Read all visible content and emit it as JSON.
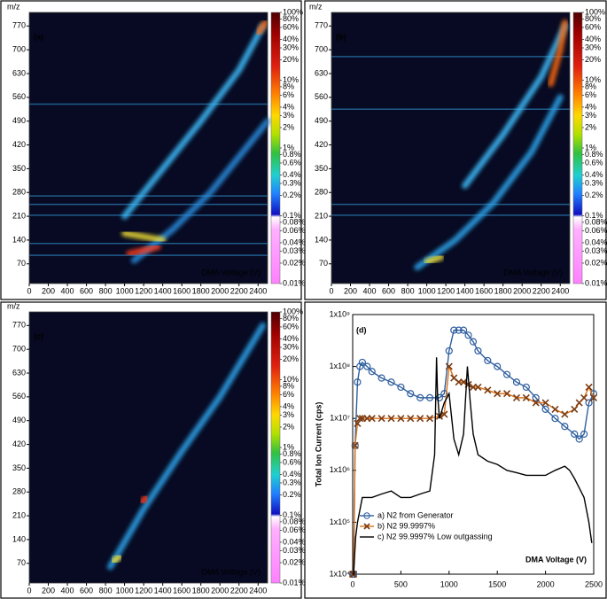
{
  "chart_data": [
    {
      "type": "heatmap",
      "panel_label": "(a)",
      "y_label": "m/z",
      "x_label": "DMA Voltage (V)",
      "xlim": [
        0,
        2500
      ],
      "xticks": [
        0,
        200,
        400,
        600,
        800,
        1000,
        1200,
        1400,
        1600,
        1800,
        2000,
        2200,
        2400
      ],
      "ylim": [
        12,
        810
      ],
      "yticks": [
        70,
        140,
        210,
        280,
        350,
        420,
        490,
        560,
        630,
        700,
        770
      ],
      "colorbar": {
        "scale": "log",
        "lim": [
          0.01,
          100
        ],
        "ticks": [
          {
            "value": 100,
            "label": "100%"
          },
          {
            "value": 80,
            "label": "80%"
          },
          {
            "value": 60,
            "label": "60%"
          },
          {
            "value": 40,
            "label": "40%"
          },
          {
            "value": 30,
            "label": "30%"
          },
          {
            "value": 20,
            "label": "20%"
          },
          {
            "value": 10,
            "label": "10%"
          },
          {
            "value": 8,
            "label": "8%"
          },
          {
            "value": 6,
            "label": "6%"
          },
          {
            "value": 4,
            "label": "4%"
          },
          {
            "value": 3,
            "label": "3%"
          },
          {
            "value": 2,
            "label": "2%"
          },
          {
            "value": 1,
            "label": "1%"
          },
          {
            "value": 0.8,
            "label": "0.8%"
          },
          {
            "value": 0.6,
            "label": "0.6%"
          },
          {
            "value": 0.4,
            "label": "0.4%"
          },
          {
            "value": 0.3,
            "label": "0.3%"
          },
          {
            "value": 0.2,
            "label": "0.2%"
          },
          {
            "value": 0.1,
            "label": "0.1%"
          },
          {
            "value": 0.08,
            "label": "0.08%"
          },
          {
            "value": 0.06,
            "label": "0.06%"
          },
          {
            "value": 0.04,
            "label": "0.04%"
          },
          {
            "value": 0.03,
            "label": "0.03%"
          },
          {
            "value": 0.02,
            "label": "0.02%"
          },
          {
            "value": 0.01,
            "label": "0.01%"
          }
        ]
      },
      "bands": [
        95,
        130,
        213,
        245,
        270,
        540
      ],
      "ridges": [
        {
          "color": "#3fc0ff",
          "x": [
            1000,
            1400,
            1800,
            2200,
            2450
          ],
          "y": [
            210,
            350,
            490,
            640,
            770
          ]
        },
        {
          "color": "#2a8fe0",
          "x": [
            1100,
            1500,
            1900,
            2300,
            2500
          ],
          "y": [
            80,
            170,
            280,
            420,
            490
          ]
        },
        {
          "color": "#f2e034",
          "x": [
            1000,
            1200,
            1400
          ],
          "y": [
            160,
            150,
            140
          ]
        },
        {
          "color": "#ff3b1f",
          "x": [
            1050,
            1200,
            1350
          ],
          "y": [
            100,
            110,
            120
          ]
        },
        {
          "color": "#ff6a10",
          "x": [
            2400,
            2480
          ],
          "y": [
            750,
            780
          ]
        }
      ]
    },
    {
      "type": "heatmap",
      "panel_label": "(b)",
      "y_label": "m/z",
      "x_label": "DMA Voltage (V)",
      "xlim": [
        0,
        2500
      ],
      "xticks": [
        0,
        200,
        400,
        600,
        800,
        1000,
        1200,
        1400,
        1600,
        1800,
        2000,
        2200,
        2400
      ],
      "ylim": [
        12,
        810
      ],
      "yticks": [
        70,
        140,
        210,
        280,
        350,
        420,
        490,
        560,
        630,
        700,
        770
      ],
      "colorbar": {
        "scale": "log",
        "lim": [
          0.01,
          100
        ],
        "ticks": [
          {
            "value": 100,
            "label": "100%"
          },
          {
            "value": 80,
            "label": "80%"
          },
          {
            "value": 60,
            "label": "60%"
          },
          {
            "value": 40,
            "label": "40%"
          },
          {
            "value": 30,
            "label": "30%"
          },
          {
            "value": 20,
            "label": "20%"
          },
          {
            "value": 10,
            "label": "10%"
          },
          {
            "value": 8,
            "label": "8%"
          },
          {
            "value": 6,
            "label": "6%"
          },
          {
            "value": 4,
            "label": "4%"
          },
          {
            "value": 3,
            "label": "3%"
          },
          {
            "value": 2,
            "label": "2%"
          },
          {
            "value": 1,
            "label": "1%"
          },
          {
            "value": 0.8,
            "label": "0.8%"
          },
          {
            "value": 0.6,
            "label": "0.6%"
          },
          {
            "value": 0.4,
            "label": "0.4%"
          },
          {
            "value": 0.3,
            "label": "0.3%"
          },
          {
            "value": 0.2,
            "label": "0.2%"
          },
          {
            "value": 0.1,
            "label": "0.1%"
          },
          {
            "value": 0.08,
            "label": "0.08%"
          },
          {
            "value": 0.06,
            "label": "0.06%"
          },
          {
            "value": 0.04,
            "label": "0.04%"
          },
          {
            "value": 0.03,
            "label": "0.03%"
          },
          {
            "value": 0.02,
            "label": "0.02%"
          },
          {
            "value": 0.01,
            "label": "0.01%"
          }
        ]
      },
      "bands": [
        213,
        245,
        525,
        680
      ],
      "ridges": [
        {
          "color": "#2fa8f0",
          "x": [
            900,
            1300,
            1700,
            2100,
            2400
          ],
          "y": [
            60,
            140,
            250,
            400,
            560
          ]
        },
        {
          "color": "#3fc0ff",
          "x": [
            1400,
            1800,
            2200,
            2450
          ],
          "y": [
            300,
            450,
            620,
            770
          ]
        },
        {
          "color": "#f2e034",
          "x": [
            1000,
            1150
          ],
          "y": [
            75,
            90
          ]
        },
        {
          "color": "#ff6a10",
          "x": [
            2300,
            2400,
            2450
          ],
          "y": [
            600,
            700,
            780
          ]
        }
      ]
    },
    {
      "type": "heatmap",
      "panel_label": "(c)",
      "y_label": "m/z",
      "x_label": "DMA Voltage (V)",
      "xlim": [
        0,
        2500
      ],
      "xticks": [
        0,
        200,
        400,
        600,
        800,
        1000,
        1200,
        1400,
        1600,
        1800,
        2000,
        2200,
        2400
      ],
      "ylim": [
        12,
        810
      ],
      "yticks": [
        70,
        140,
        210,
        280,
        350,
        420,
        490,
        560,
        630,
        700,
        770
      ],
      "colorbar": {
        "scale": "log",
        "lim": [
          0.01,
          100
        ],
        "ticks": [
          {
            "value": 100,
            "label": "100%"
          },
          {
            "value": 80,
            "label": "80%"
          },
          {
            "value": 60,
            "label": "60%"
          },
          {
            "value": 40,
            "label": "40%"
          },
          {
            "value": 30,
            "label": "30%"
          },
          {
            "value": 20,
            "label": "20%"
          },
          {
            "value": 10,
            "label": "10%"
          },
          {
            "value": 8,
            "label": "8%"
          },
          {
            "value": 6,
            "label": "6%"
          },
          {
            "value": 4,
            "label": "4%"
          },
          {
            "value": 3,
            "label": "3%"
          },
          {
            "value": 2,
            "label": "2%"
          },
          {
            "value": 1,
            "label": "1%"
          },
          {
            "value": 0.8,
            "label": "0.8%"
          },
          {
            "value": 0.6,
            "label": "0.6%"
          },
          {
            "value": 0.4,
            "label": "0.4%"
          },
          {
            "value": 0.3,
            "label": "0.3%"
          },
          {
            "value": 0.2,
            "label": "0.2%"
          },
          {
            "value": 0.1,
            "label": "0.1%"
          },
          {
            "value": 0.08,
            "label": "0.08%"
          },
          {
            "value": 0.06,
            "label": "0.06%"
          },
          {
            "value": 0.04,
            "label": "0.04%"
          },
          {
            "value": 0.03,
            "label": "0.03%"
          },
          {
            "value": 0.02,
            "label": "0.02%"
          },
          {
            "value": 0.01,
            "label": "0.01%"
          }
        ]
      },
      "bands": [],
      "ridges": [
        {
          "color": "#2fa8f0",
          "x": [
            850,
            1200,
            1600,
            2000,
            2450
          ],
          "y": [
            60,
            230,
            400,
            560,
            770
          ]
        },
        {
          "color": "#f2e034",
          "x": [
            880,
            950
          ],
          "y": [
            75,
            90
          ]
        },
        {
          "color": "#ff3b1f",
          "x": [
            1180,
            1230
          ],
          "y": [
            250,
            265
          ]
        }
      ]
    },
    {
      "type": "line",
      "panel_label": "(d)",
      "y_label": "Total Ion Current (cps)",
      "x_label": "DMA Voltage (V)",
      "xlim": [
        0,
        2500
      ],
      "xticks": [
        0,
        500,
        1000,
        1500,
        2000,
        2500
      ],
      "ylim": [
        10000,
        1000000000
      ],
      "log_y": true,
      "yticks": [
        {
          "value": 10000,
          "label": "1x10⁴"
        },
        {
          "value": 100000,
          "label": "1x10⁵"
        },
        {
          "value": 1000000,
          "label": "1x10⁶"
        },
        {
          "value": 10000000,
          "label": "1x10⁷"
        },
        {
          "value": 100000000,
          "label": "1x10⁸"
        },
        {
          "value": 1000000000,
          "label": "1x10⁹"
        }
      ],
      "legend": "lower left",
      "series": [
        {
          "name": "a) N2 from Generator",
          "color": "#2f5f9f",
          "marker": "circle",
          "x": [
            0,
            10,
            25,
            50,
            75,
            100,
            150,
            200,
            300,
            400,
            500,
            600,
            700,
            800,
            900,
            950,
            1000,
            1050,
            1100,
            1150,
            1200,
            1250,
            1300,
            1400,
            1500,
            1600,
            1700,
            1800,
            1900,
            2000,
            2100,
            2200,
            2300,
            2350,
            2400,
            2450,
            2500
          ],
          "values": [
            10000.0,
            10000.0,
            3000000.0,
            50000000.0,
            100000000.0,
            120000000.0,
            100000000.0,
            80000000.0,
            60000000.0,
            50000000.0,
            40000000.0,
            30000000.0,
            25000000.0,
            25000000.0,
            25000000.0,
            30000000.0,
            200000000.0,
            500000000.0,
            500000000.0,
            500000000.0,
            400000000.0,
            300000000.0,
            200000000.0,
            130000000.0,
            100000000.0,
            70000000.0,
            50000000.0,
            40000000.0,
            25000000.0,
            15000000.0,
            10000000.0,
            7000000.0,
            5000000.0,
            4000000.0,
            5000000.0,
            20000000.0,
            30000000.0
          ]
        },
        {
          "name": "b) N2 99.9997%",
          "color": "#d9731c",
          "marker": "x",
          "x": [
            0,
            10,
            25,
            50,
            75,
            100,
            150,
            200,
            300,
            400,
            500,
            600,
            700,
            800,
            900,
            950,
            1000,
            1050,
            1100,
            1150,
            1200,
            1250,
            1300,
            1400,
            1500,
            1600,
            1700,
            1800,
            1900,
            2000,
            2100,
            2200,
            2300,
            2350,
            2400,
            2450,
            2500
          ],
          "values": [
            10000.0,
            10000.0,
            3000000.0,
            8000000.0,
            10000000.0,
            10000000.0,
            10000000.0,
            10000000.0,
            10000000.0,
            10000000.0,
            10000000.0,
            10000000.0,
            10000000.0,
            10000000.0,
            11000000.0,
            12000000.0,
            100000000.0,
            60000000.0,
            50000000.0,
            50000000.0,
            45000000.0,
            40000000.0,
            40000000.0,
            35000000.0,
            30000000.0,
            30000000.0,
            25000000.0,
            25000000.0,
            20000000.0,
            20000000.0,
            15000000.0,
            12000000.0,
            15000000.0,
            20000000.0,
            25000000.0,
            40000000.0,
            25000000.0
          ]
        },
        {
          "name": "c) N2 99.9997% Low outgassing",
          "color": "#000000",
          "x": [
            0,
            10,
            30,
            50,
            100,
            200,
            300,
            400,
            500,
            600,
            700,
            800,
            850,
            870,
            880,
            900,
            950,
            1000,
            1050,
            1100,
            1150,
            1190,
            1220,
            1250,
            1300,
            1400,
            1500,
            1600,
            1700,
            1800,
            1900,
            2000,
            2100,
            2200,
            2250,
            2300,
            2400,
            2450,
            2480
          ],
          "values": [
            10000.0,
            10000.0,
            50000.0,
            100000.0,
            300000.0,
            300000.0,
            350000.0,
            400000.0,
            300000.0,
            300000.0,
            350000.0,
            400000.0,
            2000000.0,
            150000000.0,
            30000000.0,
            10000000.0,
            20000000.0,
            30000000.0,
            4000000.0,
            2000000.0,
            5000000.0,
            100000000.0,
            20000000.0,
            5000000.0,
            2000000.0,
            1500000.0,
            1300000.0,
            1000000.0,
            900000.0,
            800000.0,
            800000.0,
            800000.0,
            1000000.0,
            1200000.0,
            1000000.0,
            700000.0,
            300000.0,
            100000.0,
            40000.0
          ]
        }
      ]
    }
  ]
}
